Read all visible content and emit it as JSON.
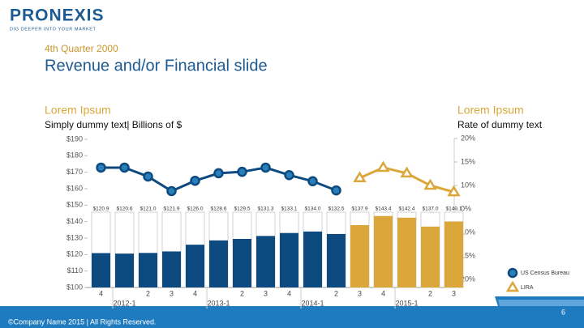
{
  "header": {
    "logo": "PRONEXIS",
    "tagline": "DIG DEEPER INTO YOUR MARKET",
    "subtitle": "4th Quarter 2000",
    "title": "Revenue and/or Financial slide"
  },
  "chart_data": {
    "type": "bar",
    "left_title": "Lorem Ipsum",
    "left_subtitle": "Simply dummy text| Billions of $",
    "right_title": "Lorem Ipsum",
    "right_subtitle": "Rate of dummy text",
    "categories": [
      "4",
      "2012-1",
      "2",
      "3",
      "4",
      "2013-1",
      "2",
      "3",
      "4",
      "2014-1",
      "2",
      "3",
      "4",
      "2015-1",
      "2",
      "3"
    ],
    "values": [
      120.9,
      120.6,
      121.0,
      121.9,
      126.0,
      128.6,
      129.5,
      131.3,
      133.1,
      134.0,
      132.5,
      137.9,
      143.4,
      142.4,
      137.0,
      140.1
    ],
    "value_labels": [
      "$120.9",
      "$120.6",
      "$121.0",
      "$121.9",
      "$126.0",
      "$128.6",
      "$129.5",
      "$131.3",
      "$133.1",
      "$134.0",
      "$132.5",
      "$137.9",
      "$143.4",
      "$142.4",
      "$137.0",
      "$140.1"
    ],
    "bar_colors": [
      "#0d4a80",
      "#0d4a80",
      "#0d4a80",
      "#0d4a80",
      "#0d4a80",
      "#0d4a80",
      "#0d4a80",
      "#0d4a80",
      "#0d4a80",
      "#0d4a80",
      "#0d4a80",
      "#dba73a",
      "#dba73a",
      "#dba73a",
      "#dba73a",
      "#dba73a"
    ],
    "ylim": [
      100,
      190
    ],
    "yticks": [
      {
        "value": 100,
        "label": "$100"
      },
      {
        "value": 110,
        "label": "$110"
      },
      {
        "value": 120,
        "label": "$120"
      },
      {
        "value": 130,
        "label": "$130"
      },
      {
        "value": 140,
        "label": "$140"
      },
      {
        "value": 150,
        "label": "$150"
      },
      {
        "value": 160,
        "label": "$160"
      },
      {
        "value": 170,
        "label": "$170"
      },
      {
        "value": 180,
        "label": "$180"
      },
      {
        "value": 190,
        "label": "$190"
      }
    ],
    "y2lim": [
      20,
      -20
    ],
    "y2ticks": [
      {
        "value": 20,
        "label": "20%"
      },
      {
        "value": 15,
        "label": "15%"
      },
      {
        "value": 10,
        "label": "10%"
      },
      {
        "value": 0,
        "label": "0%"
      },
      {
        "value": -10,
        "label": "10%"
      },
      {
        "value": -15,
        "label": "15%"
      },
      {
        "value": -20,
        "label": "20%"
      }
    ],
    "grid": false,
    "legend": "lower-right",
    "series": [
      {
        "name": "US Census Bureau",
        "color": "#0d4a80",
        "marker": "circle",
        "axis": "y2",
        "values": [
          13.8,
          13.8,
          11.9,
          7.6,
          11.0,
          12.6,
          12.9,
          13.8,
          12.2,
          10.9,
          7.9,
          null,
          null,
          null,
          null,
          null
        ]
      },
      {
        "name": "LIRA",
        "color": "#dba73a",
        "marker": "triangle",
        "axis": "y2",
        "values": [
          null,
          null,
          null,
          null,
          null,
          null,
          null,
          null,
          null,
          null,
          null,
          11.6,
          13.8,
          12.6,
          10.0,
          7.2
        ]
      }
    ]
  },
  "footer": {
    "copyright": "©Company Name 2015 | All Rights Reserved.",
    "page": "6"
  }
}
